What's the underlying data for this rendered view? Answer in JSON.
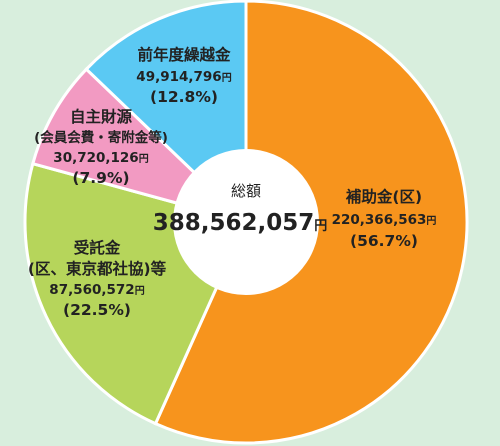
{
  "colors": {
    "background": "#d8eedd",
    "orange": "#f7941d",
    "green": "#b6d55b",
    "pink": "#f29ac2",
    "blue": "#5bc9f3"
  },
  "chart_data": {
    "type": "pie",
    "donut": true,
    "start_angle_deg": 0,
    "direction": "clockwise",
    "center": {
      "title": "総額",
      "value": "388,562,057",
      "unit": "円"
    },
    "slices": [
      {
        "name_lines": [
          "補助金(区)"
        ],
        "amount": "220,366,563",
        "value": 220366563,
        "unit": "円",
        "percent_label": "(56.7%)",
        "percent": 56.7,
        "color": "#f7941d"
      },
      {
        "name_lines": [
          "受託金",
          "(区、東京都社協)等"
        ],
        "amount": "87,560,572",
        "value": 87560572,
        "unit": "円",
        "percent_label": "(22.5%)",
        "percent": 22.5,
        "color": "#b6d55b"
      },
      {
        "name_lines": [
          "自主財源",
          "(会員会費・寄附金等)"
        ],
        "amount": "30,720,126",
        "value": 30720126,
        "unit": "円",
        "percent_label": "(7.9%)",
        "percent": 7.9,
        "color": "#f29ac2"
      },
      {
        "name_lines": [
          "前年度繰越金"
        ],
        "amount": "49,914,796",
        "value": 49914796,
        "unit": "円",
        "percent_label": "(12.8%)",
        "percent": 12.8,
        "color": "#5bc9f3"
      }
    ]
  }
}
